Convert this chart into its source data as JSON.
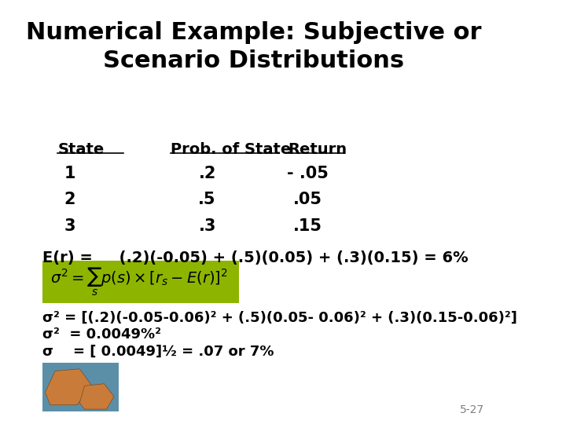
{
  "title_line1": "Numerical Example: Subjective or",
  "title_line2": "Scenario Distributions",
  "bg_color": "#ffffff",
  "title_color": "#000000",
  "title_fontsize": 22,
  "table_header": [
    "State",
    "Prob. of State",
    "Return"
  ],
  "table_rows": [
    [
      "1",
      ".2",
      "- .05"
    ],
    [
      "2",
      ".5",
      ".05"
    ],
    [
      "3",
      ".3",
      ".15"
    ]
  ],
  "er_line": "E(r) =     (.2)(-0.05) + (.5)(0.05) + (.3)(0.15) = 6%",
  "formula_box_color": "#8db500",
  "sigma2_line1": "σ² = [(.2)(-0.05-0.06)² + (.5)(0.05- 0.06)² + (.3)(0.15-0.06)²]",
  "sigma2_line2": "σ²  = 0.0049%²",
  "sigma_line3": "σ    = [ 0.0049]½ = .07 or 7%",
  "slide_number": "5-27",
  "text_fontsize": 14,
  "body_color": "#000000"
}
